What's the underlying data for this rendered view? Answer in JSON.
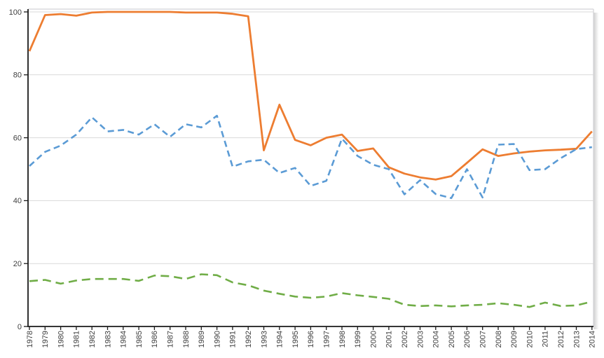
{
  "figure": {
    "background": "#ffffff",
    "plot_border_color": "#d2d2d6",
    "shadow_color": "#9a9a9a"
  },
  "chart_data": {
    "type": "line",
    "title": "",
    "xlabel": "",
    "ylabel": "",
    "x": [
      1978,
      1979,
      1980,
      1981,
      1982,
      1983,
      1984,
      1985,
      1986,
      1987,
      1988,
      1989,
      1990,
      1991,
      1992,
      1993,
      1994,
      1995,
      1996,
      1997,
      1998,
      1999,
      2000,
      2001,
      2002,
      2003,
      2004,
      2005,
      2006,
      2007,
      2008,
      2009,
      2010,
      2011,
      2012,
      2013,
      2014
    ],
    "ylim": [
      0,
      100
    ],
    "yticks": [
      0,
      20,
      40,
      60,
      80,
      100
    ],
    "grid": "horizontal",
    "gridline_color": "#d9d9d9",
    "axis_color": "#1a1a1a",
    "tick_label_color": "#404040",
    "legend": "none",
    "series": [
      {
        "name": "orange-solid",
        "color": "#ED7D31",
        "style": "solid",
        "values": [
          87.5,
          99,
          99.3,
          98.8,
          99.8,
          100,
          100,
          100,
          100,
          100,
          99.8,
          99.8,
          99.8,
          99.4,
          98.6,
          56,
          70.5,
          59.3,
          57.6,
          60,
          61,
          55.8,
          56.6,
          50.6,
          48.6,
          47.4,
          46.7,
          47.8,
          52,
          56.3,
          54.2,
          55,
          55.6,
          56,
          56.2,
          56.5,
          62
        ]
      },
      {
        "name": "blue-dashed",
        "color": "#5B9BD5",
        "style": "dashed",
        "values": [
          51,
          55.5,
          57.5,
          61,
          66.5,
          62,
          62.5,
          61,
          64.3,
          60.3,
          64.3,
          63.3,
          67,
          50.8,
          52.5,
          53,
          48.8,
          50.4,
          44.7,
          46.3,
          59.7,
          54.2,
          51.4,
          50,
          42,
          46.5,
          42.1,
          40.8,
          50,
          41,
          57.8,
          58,
          49.7,
          50,
          53.5,
          56.4,
          57
        ]
      },
      {
        "name": "green-dashed",
        "color": "#70AD47",
        "style": "dashed",
        "values": [
          14.4,
          14.8,
          13.6,
          14.6,
          15.1,
          15.1,
          15.1,
          14.5,
          16.2,
          16,
          15.1,
          16.6,
          16.3,
          14,
          13.1,
          11.4,
          10.4,
          9.5,
          9.1,
          9.5,
          10.6,
          9.9,
          9.4,
          8.8,
          6.9,
          6.5,
          6.7,
          6.4,
          6.7,
          6.9,
          7.4,
          6.9,
          6.2,
          7.6,
          6.5,
          6.7,
          7.9
        ]
      }
    ]
  }
}
